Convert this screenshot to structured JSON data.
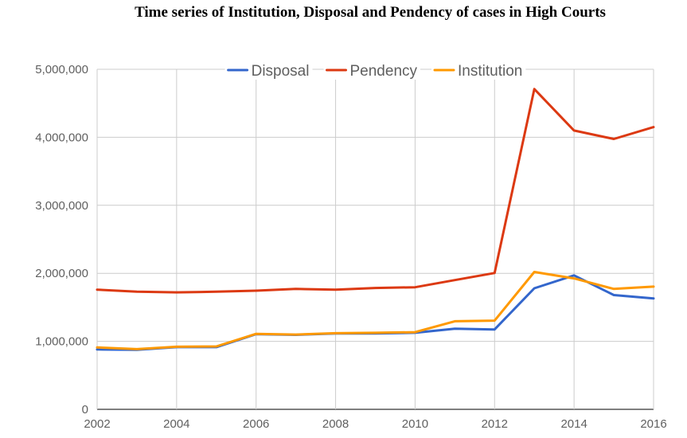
{
  "chart_data": {
    "type": "line",
    "title": "Time series of Institution, Disposal and Pendency of cases in High Courts",
    "xlabel": "",
    "ylabel": "",
    "x": [
      2002,
      2003,
      2004,
      2005,
      2006,
      2007,
      2008,
      2009,
      2010,
      2011,
      2012,
      2013,
      2014,
      2015,
      2016
    ],
    "x_ticks": [
      "2002",
      "2004",
      "2006",
      "2008",
      "2010",
      "2012",
      "2014",
      "2016"
    ],
    "y_ticks": [
      "0",
      "1,000,000",
      "2,000,000",
      "3,000,000",
      "4,000,000",
      "5,000,000"
    ],
    "ylim": [
      0,
      5000000
    ],
    "xlim": [
      2002,
      2016
    ],
    "grid": true,
    "legend_position": "top",
    "series": [
      {
        "name": "Disposal",
        "color": "#3366cc",
        "values": [
          880000,
          875000,
          915000,
          915000,
          1105000,
          1095000,
          1115000,
          1115000,
          1125000,
          1185000,
          1175000,
          1780000,
          1970000,
          1680000,
          1630000
        ]
      },
      {
        "name": "Pendency",
        "color": "#dc3912",
        "values": [
          1760000,
          1730000,
          1720000,
          1730000,
          1745000,
          1770000,
          1760000,
          1785000,
          1795000,
          1900000,
          2005000,
          4710000,
          4100000,
          3975000,
          4150000
        ]
      },
      {
        "name": "Institution",
        "color": "#ff9900",
        "values": [
          910000,
          885000,
          920000,
          925000,
          1110000,
          1100000,
          1120000,
          1125000,
          1135000,
          1295000,
          1305000,
          2020000,
          1925000,
          1770000,
          1805000
        ]
      }
    ]
  }
}
